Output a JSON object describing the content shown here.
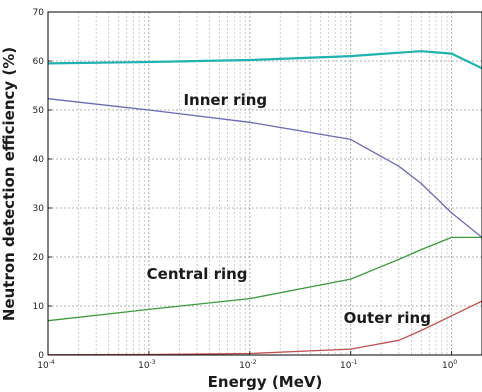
{
  "chart_data": {
    "type": "line",
    "xlabel": "Energy (MeV)",
    "ylabel": "Neutron detection efficiency (%)",
    "xscale": "log",
    "xlim": [
      0.0001,
      2
    ],
    "ylim": [
      0,
      70
    ],
    "grid": true,
    "x_ticks": [
      {
        "base": "10",
        "exp": "-4",
        "value": 0.0001
      },
      {
        "base": "10",
        "exp": "-3",
        "value": 0.001
      },
      {
        "base": "10",
        "exp": "-2",
        "value": 0.01
      },
      {
        "base": "10",
        "exp": "-1",
        "value": 0.1
      },
      {
        "base": "10",
        "exp": "0",
        "value": 1
      }
    ],
    "y_ticks": [
      "0",
      "10",
      "20",
      "30",
      "40",
      "50",
      "60",
      "70"
    ],
    "annotations": [
      {
        "text": "Inner ring",
        "x": 0.0022,
        "y": 51
      },
      {
        "text": "Central ring",
        "x": 0.00095,
        "y": 15.5
      },
      {
        "text": "Outer ring",
        "x": 0.085,
        "y": 6.5
      }
    ],
    "series": [
      {
        "color": "#20b2b2",
        "x": [
          0.0001,
          0.001,
          0.01,
          0.1,
          0.3,
          0.5,
          1,
          2
        ],
        "y": [
          59.5,
          59.8,
          60.2,
          61.0,
          61.7,
          62.0,
          61.5,
          58.5
        ]
      },
      {
        "color": "#6a6ab8",
        "x": [
          0.0001,
          0.001,
          0.01,
          0.1,
          0.3,
          0.5,
          1,
          2
        ],
        "y": [
          52.3,
          50.0,
          47.5,
          44.0,
          38.5,
          35.0,
          29.0,
          24.0
        ]
      },
      {
        "color": "#3c9a3c",
        "x": [
          0.0001,
          0.001,
          0.01,
          0.1,
          0.3,
          0.5,
          1,
          2
        ],
        "y": [
          7.0,
          9.3,
          11.5,
          15.5,
          19.5,
          21.5,
          24.0,
          24.0
        ]
      },
      {
        "color": "#c05050",
        "x": [
          0.0001,
          0.001,
          0.01,
          0.1,
          0.3,
          0.5,
          1,
          2
        ],
        "y": [
          0.05,
          0.1,
          0.3,
          1.2,
          3.0,
          5.0,
          8.0,
          11.0
        ]
      }
    ]
  }
}
